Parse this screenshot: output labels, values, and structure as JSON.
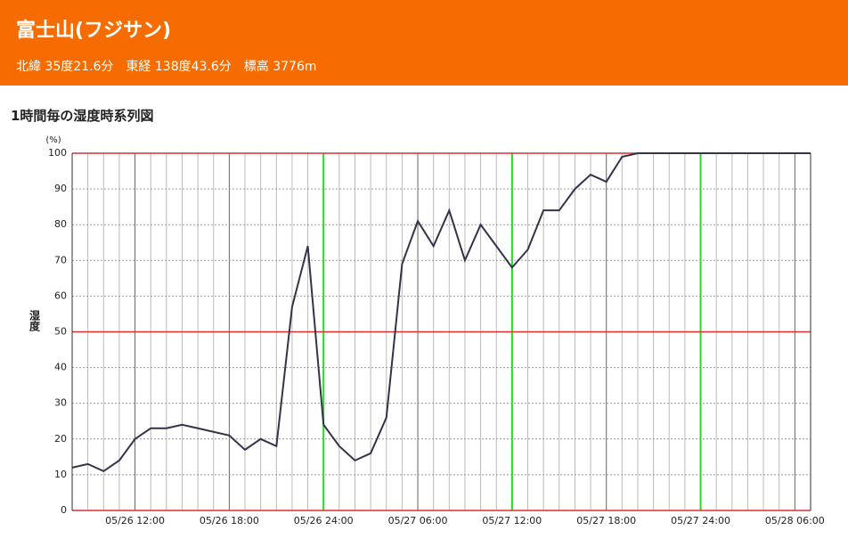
{
  "header": {
    "title": "富士山(フジサン)",
    "subtitle": "北緯 35度21.6分　東経 138度43.6分　標高 3776m"
  },
  "chart_data": {
    "type": "line",
    "title": "1時間毎の湿度時系列図",
    "y_label": "湿度",
    "y_unit": "(%)",
    "x": [
      "05/26 08:00",
      "05/26 09:00",
      "05/26 10:00",
      "05/26 11:00",
      "05/26 12:00",
      "05/26 13:00",
      "05/26 14:00",
      "05/26 15:00",
      "05/26 16:00",
      "05/26 17:00",
      "05/26 18:00",
      "05/26 19:00",
      "05/26 20:00",
      "05/26 21:00",
      "05/26 22:00",
      "05/26 23:00",
      "05/26 24:00",
      "05/27 01:00",
      "05/27 02:00",
      "05/27 03:00",
      "05/27 04:00",
      "05/27 05:00",
      "05/27 06:00",
      "05/27 07:00",
      "05/27 08:00",
      "05/27 09:00",
      "05/27 10:00",
      "05/27 11:00",
      "05/27 12:00",
      "05/27 13:00",
      "05/27 14:00",
      "05/27 15:00",
      "05/27 16:00",
      "05/27 17:00",
      "05/27 18:00",
      "05/27 19:00",
      "05/27 20:00",
      "05/27 21:00",
      "05/27 22:00",
      "05/27 23:00",
      "05/27 24:00",
      "05/28 01:00",
      "05/28 02:00",
      "05/28 03:00",
      "05/28 04:00",
      "05/28 05:00",
      "05/28 06:00",
      "05/28 07:00"
    ],
    "series": [
      {
        "name": "湿度",
        "color": "#33334a",
        "values": [
          12,
          13,
          11,
          14,
          20,
          23,
          23,
          24,
          23,
          22,
          21,
          17,
          20,
          18,
          57,
          74,
          24,
          18,
          14,
          16,
          26,
          69,
          81,
          74,
          84,
          70,
          80,
          74,
          68,
          73,
          84,
          84,
          90,
          94,
          92,
          99,
          100,
          100,
          100,
          100,
          100,
          100,
          100,
          100,
          100,
          100,
          100,
          100
        ]
      }
    ],
    "xticks": [
      "05/26 12:00",
      "05/26 18:00",
      "05/26 24:00",
      "05/27 06:00",
      "05/27 12:00",
      "05/27 18:00",
      "05/27 24:00",
      "05/28 06:00"
    ],
    "highlight_x": [
      "05/26 24:00",
      "05/27 12:00",
      "05/27 24:00"
    ],
    "highlight_color": "#22dd22",
    "reference_lines": [
      0,
      50,
      100
    ],
    "reference_color": "#d83030",
    "ylim": [
      0,
      100
    ],
    "yticks": [
      0,
      10,
      20,
      30,
      40,
      50,
      60,
      70,
      80,
      90,
      100
    ],
    "grid": true
  }
}
